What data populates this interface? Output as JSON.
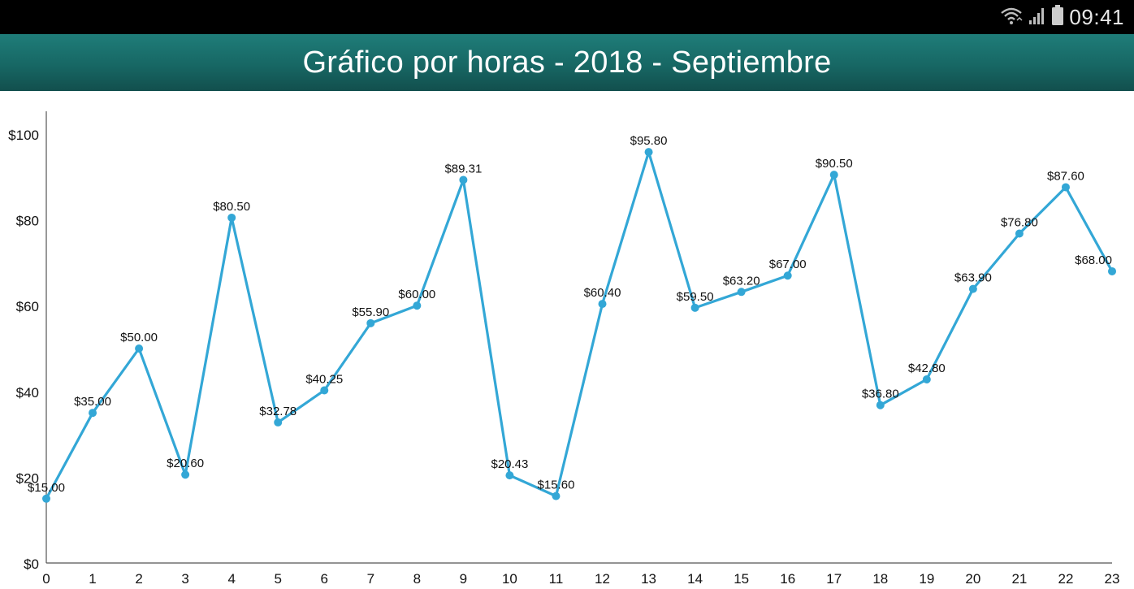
{
  "status_bar": {
    "time": "09:41",
    "icons": [
      "wifi-icon",
      "signal-icon",
      "battery-icon"
    ]
  },
  "header": {
    "title": "Gráfico por horas - 2018 - Septiembre",
    "background_color": "#176764"
  },
  "chart_data": {
    "type": "line",
    "x": [
      0,
      1,
      2,
      3,
      4,
      5,
      6,
      7,
      8,
      9,
      10,
      11,
      12,
      13,
      14,
      15,
      16,
      17,
      18,
      19,
      20,
      21,
      22,
      23
    ],
    "series": [
      {
        "values": [
          15.0,
          35.0,
          50.0,
          20.6,
          80.5,
          32.78,
          40.25,
          55.9,
          60.0,
          89.31,
          20.43,
          15.6,
          60.4,
          95.8,
          59.5,
          63.2,
          67.0,
          90.5,
          36.8,
          42.8,
          63.9,
          76.8,
          87.6,
          68.0
        ],
        "labels": [
          "$15.00",
          "$35.00",
          "$50.00",
          "$20.60",
          "$80.50",
          "$32.78",
          "$40.25",
          "$55.90",
          "$60.00",
          "$89.31",
          "$20.43",
          "$15.60",
          "$60.40",
          "$95.80",
          "$59.50",
          "$63.20",
          "$67.00",
          "$90.50",
          "$36.80",
          "$42.80",
          "$63.90",
          "$76.80",
          "$87.60",
          "$68.00"
        ],
        "color": "#33a7d6"
      }
    ],
    "yticks": [
      0,
      20,
      40,
      60,
      80,
      100
    ],
    "ytick_labels": [
      "$0",
      "$20",
      "$40",
      "$60",
      "$80",
      "$100"
    ],
    "xtick_labels": [
      "0",
      "1",
      "2",
      "3",
      "4",
      "5",
      "6",
      "7",
      "8",
      "9",
      "10",
      "11",
      "12",
      "13",
      "14",
      "15",
      "16",
      "17",
      "18",
      "19",
      "20",
      "21",
      "22",
      "23"
    ],
    "ylim": [
      0,
      100
    ],
    "xlim": [
      0,
      23
    ],
    "grid": false,
    "legend": "none",
    "axis_color": "#555555"
  }
}
